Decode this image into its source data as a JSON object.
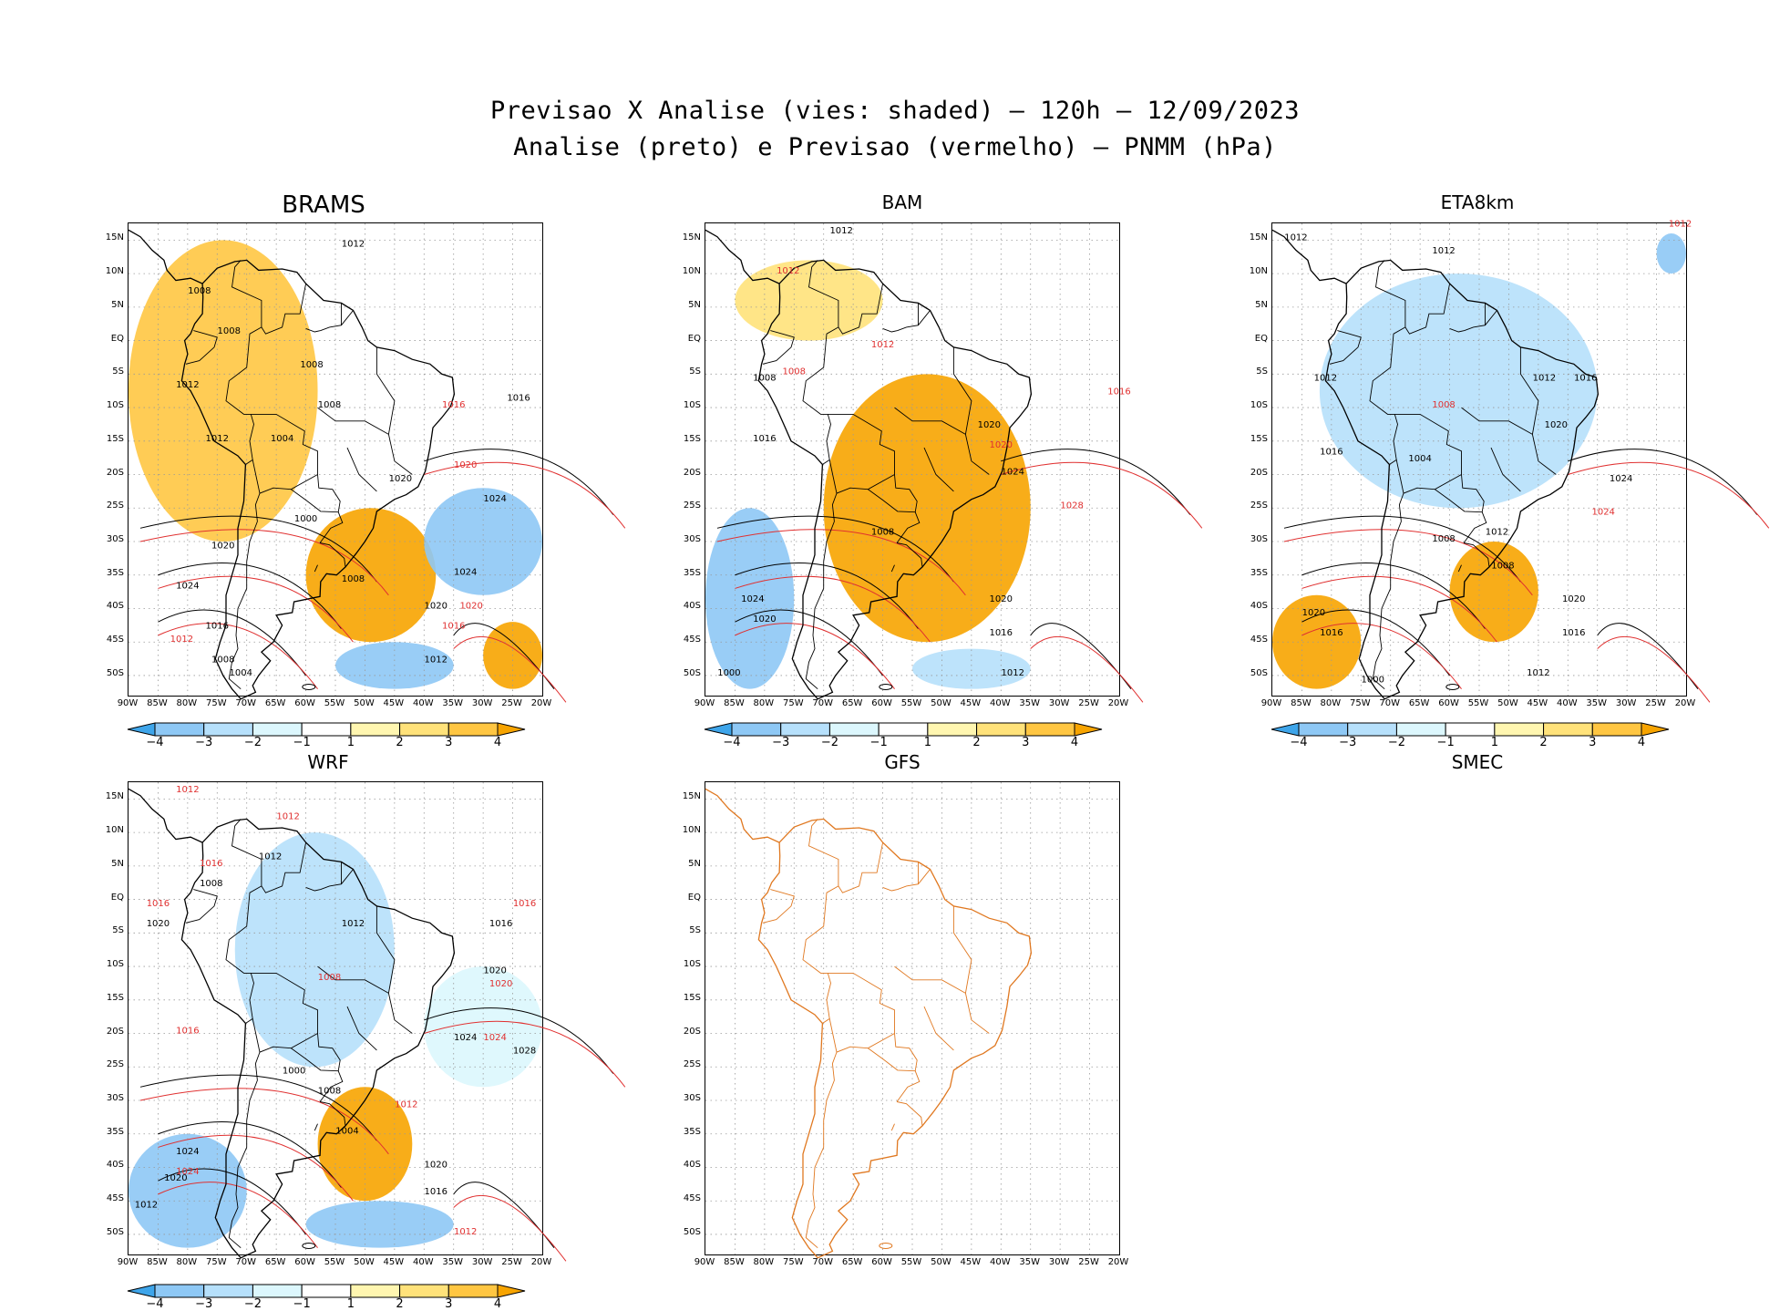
{
  "title_line1": "Previsao X Analise (vies: shaded) – 120h – 12/09/2023",
  "title_line2": "Analise (preto) e Previsao (vermelho) – PNMM (hPa)",
  "colors": {
    "neg4": "#3ea5ea",
    "neg3": "#8ec8f5",
    "neg2": "#b6e0fb",
    "neg1": "#dcf7fd",
    "pos1": "#fff6b0",
    "pos2": "#ffe27a",
    "pos3": "#ffc642",
    "pos4": "#f7a400",
    "analysis_line": "#000000",
    "forecast_line": "#e03030",
    "coast_gfs": "#e07820"
  },
  "chart_data": [
    {
      "type": "heatmap",
      "panel": "BRAMS",
      "title": "BRAMS",
      "xlabel": "",
      "ylabel": "",
      "x_ticks": [
        "90W",
        "85W",
        "80W",
        "75W",
        "70W",
        "65W",
        "60W",
        "55W",
        "50W",
        "45W",
        "40W",
        "35W",
        "30W",
        "25W",
        "20W"
      ],
      "y_ticks": [
        "15N",
        "10N",
        "5N",
        "EQ",
        "5S",
        "10S",
        "15S",
        "20S",
        "25S",
        "30S",
        "35S",
        "40S",
        "45S",
        "50S"
      ],
      "colorbar": [
        -4,
        -3,
        -2,
        -1,
        1,
        2,
        3,
        4
      ],
      "bias_regions": [
        {
          "lon": [
            -90,
            -58
          ],
          "lat": [
            -30,
            15
          ],
          "bias": 3
        },
        {
          "lon": [
            -60,
            -38
          ],
          "lat": [
            -45,
            -25
          ],
          "bias": 4
        },
        {
          "lon": [
            -40,
            -20
          ],
          "lat": [
            -38,
            -22
          ],
          "bias": -3
        },
        {
          "lon": [
            -55,
            -35
          ],
          "lat": [
            -52,
            -45
          ],
          "bias": -3
        },
        {
          "lon": [
            -30,
            -20
          ],
          "lat": [
            -52,
            -42
          ],
          "bias": 4
        }
      ],
      "contour_labels": [
        {
          "text": "1012",
          "lon": -52,
          "lat": 14,
          "color": "black"
        },
        {
          "text": "1008",
          "lon": -78,
          "lat": 7,
          "color": "black"
        },
        {
          "text": "1008",
          "lon": -73,
          "lat": 1,
          "color": "black"
        },
        {
          "text": "1008",
          "lon": -59,
          "lat": -4,
          "color": "black"
        },
        {
          "text": "1012",
          "lon": -80,
          "lat": -7,
          "color": "black"
        },
        {
          "text": "1008",
          "lon": -56,
          "lat": -10,
          "color": "black"
        },
        {
          "text": "1004",
          "lon": -64,
          "lat": -15,
          "color": "black"
        },
        {
          "text": "1012",
          "lon": -75,
          "lat": -15,
          "color": "black"
        },
        {
          "text": "1016",
          "lon": -24,
          "lat": -9,
          "color": "black"
        },
        {
          "text": "1016",
          "lon": -35,
          "lat": -10,
          "color": "red"
        },
        {
          "text": "1020",
          "lon": -44,
          "lat": -21,
          "color": "black"
        },
        {
          "text": "1020",
          "lon": -33,
          "lat": -19,
          "color": "red"
        },
        {
          "text": "1024",
          "lon": -28,
          "lat": -24,
          "color": "black"
        },
        {
          "text": "1000",
          "lon": -60,
          "lat": -27,
          "color": "black"
        },
        {
          "text": "1008",
          "lon": -52,
          "lat": -36,
          "color": "black"
        },
        {
          "text": "1020",
          "lon": -74,
          "lat": -31,
          "color": "black"
        },
        {
          "text": "1024",
          "lon": -80,
          "lat": -37,
          "color": "black"
        },
        {
          "text": "1024",
          "lon": -33,
          "lat": -35,
          "color": "black"
        },
        {
          "text": "1020",
          "lon": -38,
          "lat": -40,
          "color": "black"
        },
        {
          "text": "1020",
          "lon": -32,
          "lat": -40,
          "color": "red"
        },
        {
          "text": "1016",
          "lon": -75,
          "lat": -43,
          "color": "black"
        },
        {
          "text": "1012",
          "lon": -81,
          "lat": -45,
          "color": "red"
        },
        {
          "text": "1016",
          "lon": -35,
          "lat": -43,
          "color": "red"
        },
        {
          "text": "1008",
          "lon": -74,
          "lat": -48,
          "color": "black"
        },
        {
          "text": "1004",
          "lon": -71,
          "lat": -50,
          "color": "black"
        },
        {
          "text": "1012",
          "lon": -38,
          "lat": -48,
          "color": "black"
        }
      ]
    },
    {
      "type": "heatmap",
      "panel": "BAM",
      "title": "BAM",
      "x_ticks": [
        "90W",
        "85W",
        "80W",
        "75W",
        "70W",
        "65W",
        "60W",
        "55W",
        "50W",
        "45W",
        "40W",
        "35W",
        "30W",
        "25W",
        "20W"
      ],
      "y_ticks": [
        "15N",
        "10N",
        "5N",
        "EQ",
        "5S",
        "10S",
        "15S",
        "20S",
        "25S",
        "30S",
        "35S",
        "40S",
        "45S",
        "50S"
      ],
      "colorbar": [
        -4,
        -3,
        -2,
        -1,
        1,
        2,
        3,
        4
      ],
      "bias_regions": [
        {
          "lon": [
            -70,
            -35
          ],
          "lat": [
            -45,
            -5
          ],
          "bias": 4
        },
        {
          "lon": [
            -90,
            -75
          ],
          "lat": [
            -52,
            -25
          ],
          "bias": -3
        },
        {
          "lon": [
            -85,
            -60
          ],
          "lat": [
            0,
            12
          ],
          "bias": 2
        },
        {
          "lon": [
            -55,
            -35
          ],
          "lat": [
            -52,
            -46
          ],
          "bias": -2
        }
      ],
      "contour_labels": [
        {
          "text": "1012",
          "lon": -67,
          "lat": 16,
          "color": "black"
        },
        {
          "text": "1012",
          "lon": -76,
          "lat": 10,
          "color": "red"
        },
        {
          "text": "1008",
          "lon": -80,
          "lat": -6,
          "color": "black"
        },
        {
          "text": "1008",
          "lon": -75,
          "lat": -5,
          "color": "red"
        },
        {
          "text": "1012",
          "lon": -60,
          "lat": -1,
          "color": "red"
        },
        {
          "text": "1016",
          "lon": -20,
          "lat": -8,
          "color": "red"
        },
        {
          "text": "1016",
          "lon": -80,
          "lat": -15,
          "color": "black"
        },
        {
          "text": "1020",
          "lon": -42,
          "lat": -13,
          "color": "black"
        },
        {
          "text": "1020",
          "lon": -40,
          "lat": -16,
          "color": "red"
        },
        {
          "text": "1024",
          "lon": -38,
          "lat": -20,
          "color": "black"
        },
        {
          "text": "1028",
          "lon": -28,
          "lat": -25,
          "color": "red"
        },
        {
          "text": "1008",
          "lon": -60,
          "lat": -29,
          "color": "black"
        },
        {
          "text": "1024",
          "lon": -82,
          "lat": -39,
          "color": "black"
        },
        {
          "text": "1020",
          "lon": -80,
          "lat": -42,
          "color": "black"
        },
        {
          "text": "1020",
          "lon": -40,
          "lat": -39,
          "color": "black"
        },
        {
          "text": "1016",
          "lon": -40,
          "lat": -44,
          "color": "black"
        },
        {
          "text": "1012",
          "lon": -38,
          "lat": -50,
          "color": "black"
        },
        {
          "text": "1000",
          "lon": -86,
          "lat": -50,
          "color": "black"
        }
      ]
    },
    {
      "type": "heatmap",
      "panel": "ETA8km",
      "title": "ETA8km",
      "x_ticks": [
        "90W",
        "85W",
        "80W",
        "75W",
        "70W",
        "65W",
        "60W",
        "55W",
        "50W",
        "45W",
        "40W",
        "35W",
        "30W",
        "25W",
        "20W"
      ],
      "y_ticks": [
        "15N",
        "10N",
        "5N",
        "EQ",
        "5S",
        "10S",
        "15S",
        "20S",
        "25S",
        "30S",
        "35S",
        "40S",
        "45S",
        "50S"
      ],
      "colorbar": [
        -4,
        -3,
        -2,
        -1,
        1,
        2,
        3,
        4
      ],
      "bias_regions": [
        {
          "lon": [
            -82,
            -35
          ],
          "lat": [
            -25,
            10
          ],
          "bias": -2
        },
        {
          "lon": [
            -60,
            -45
          ],
          "lat": [
            -45,
            -30
          ],
          "bias": 4
        },
        {
          "lon": [
            -90,
            -75
          ],
          "lat": [
            -52,
            -38
          ],
          "bias": 4
        },
        {
          "lon": [
            -25,
            -20
          ],
          "lat": [
            10,
            16
          ],
          "bias": -3
        }
      ],
      "contour_labels": [
        {
          "text": "1012",
          "lon": -86,
          "lat": 15,
          "color": "black"
        },
        {
          "text": "1012",
          "lon": -61,
          "lat": 13,
          "color": "black"
        },
        {
          "text": "1012",
          "lon": -21,
          "lat": 17,
          "color": "red"
        },
        {
          "text": "1012",
          "lon": -81,
          "lat": -6,
          "color": "black"
        },
        {
          "text": "1012",
          "lon": -44,
          "lat": -6,
          "color": "black"
        },
        {
          "text": "1016",
          "lon": -37,
          "lat": -6,
          "color": "black"
        },
        {
          "text": "1008",
          "lon": -61,
          "lat": -10,
          "color": "red"
        },
        {
          "text": "1016",
          "lon": -80,
          "lat": -17,
          "color": "black"
        },
        {
          "text": "1020",
          "lon": -42,
          "lat": -13,
          "color": "black"
        },
        {
          "text": "1024",
          "lon": -31,
          "lat": -21,
          "color": "black"
        },
        {
          "text": "1024",
          "lon": -34,
          "lat": -26,
          "color": "red"
        },
        {
          "text": "1004",
          "lon": -65,
          "lat": -18,
          "color": "black"
        },
        {
          "text": "1008",
          "lon": -61,
          "lat": -30,
          "color": "black"
        },
        {
          "text": "1012",
          "lon": -52,
          "lat": -29,
          "color": "black"
        },
        {
          "text": "1008",
          "lon": -51,
          "lat": -34,
          "color": "black"
        },
        {
          "text": "1020",
          "lon": -39,
          "lat": -39,
          "color": "black"
        },
        {
          "text": "1020",
          "lon": -83,
          "lat": -41,
          "color": "black"
        },
        {
          "text": "1016",
          "lon": -80,
          "lat": -44,
          "color": "black"
        },
        {
          "text": "1016",
          "lon": -39,
          "lat": -44,
          "color": "black"
        },
        {
          "text": "1012",
          "lon": -45,
          "lat": -50,
          "color": "black"
        },
        {
          "text": "1000",
          "lon": -73,
          "lat": -51,
          "color": "black"
        }
      ]
    },
    {
      "type": "heatmap",
      "panel": "WRF",
      "title": "WRF",
      "x_ticks": [
        "90W",
        "85W",
        "80W",
        "75W",
        "70W",
        "65W",
        "60W",
        "55W",
        "50W",
        "45W",
        "40W",
        "35W",
        "30W",
        "25W",
        "20W"
      ],
      "y_ticks": [
        "15N",
        "10N",
        "5N",
        "EQ",
        "5S",
        "10S",
        "15S",
        "20S",
        "25S",
        "30S",
        "35S",
        "40S",
        "45S",
        "50S"
      ],
      "colorbar": [
        -4,
        -3,
        -2,
        -1,
        1,
        2,
        3,
        4
      ],
      "bias_regions": [
        {
          "lon": [
            -72,
            -45
          ],
          "lat": [
            -25,
            10
          ],
          "bias": -2
        },
        {
          "lon": [
            -90,
            -70
          ],
          "lat": [
            -52,
            -35
          ],
          "bias": -3
        },
        {
          "lon": [
            -58,
            -42
          ],
          "lat": [
            -45,
            -28
          ],
          "bias": 4
        },
        {
          "lon": [
            -60,
            -35
          ],
          "lat": [
            -52,
            -45
          ],
          "bias": -3
        },
        {
          "lon": [
            -40,
            -20
          ],
          "lat": [
            -28,
            -10
          ],
          "bias": -1
        }
      ],
      "contour_labels": [
        {
          "text": "1012",
          "lon": -80,
          "lat": 16,
          "color": "red"
        },
        {
          "text": "1012",
          "lon": -63,
          "lat": 12,
          "color": "red"
        },
        {
          "text": "1012",
          "lon": -66,
          "lat": 6,
          "color": "black"
        },
        {
          "text": "1016",
          "lon": -76,
          "lat": 5,
          "color": "red"
        },
        {
          "text": "1008",
          "lon": -76,
          "lat": 2,
          "color": "black"
        },
        {
          "text": "1016",
          "lon": -85,
          "lat": -1,
          "color": "red"
        },
        {
          "text": "1020",
          "lon": -85,
          "lat": -4,
          "color": "black"
        },
        {
          "text": "1012",
          "lon": -52,
          "lat": -4,
          "color": "black"
        },
        {
          "text": "1016",
          "lon": -27,
          "lat": -4,
          "color": "black"
        },
        {
          "text": "1016",
          "lon": -23,
          "lat": -1,
          "color": "red"
        },
        {
          "text": "1008",
          "lon": -56,
          "lat": -12,
          "color": "red"
        },
        {
          "text": "1020",
          "lon": -28,
          "lat": -11,
          "color": "black"
        },
        {
          "text": "1020",
          "lon": -27,
          "lat": -13,
          "color": "red"
        },
        {
          "text": "1024",
          "lon": -33,
          "lat": -21,
          "color": "black"
        },
        {
          "text": "1024",
          "lon": -28,
          "lat": -21,
          "color": "red"
        },
        {
          "text": "1028",
          "lon": -23,
          "lat": -23,
          "color": "black"
        },
        {
          "text": "1016",
          "lon": -80,
          "lat": -20,
          "color": "red"
        },
        {
          "text": "1000",
          "lon": -62,
          "lat": -26,
          "color": "black"
        },
        {
          "text": "1008",
          "lon": -56,
          "lat": -29,
          "color": "black"
        },
        {
          "text": "1012",
          "lon": -43,
          "lat": -31,
          "color": "red"
        },
        {
          "text": "1004",
          "lon": -53,
          "lat": -35,
          "color": "black"
        },
        {
          "text": "1024",
          "lon": -80,
          "lat": -38,
          "color": "black"
        },
        {
          "text": "1020",
          "lon": -82,
          "lat": -42,
          "color": "black"
        },
        {
          "text": "1024",
          "lon": -80,
          "lat": -41,
          "color": "red"
        },
        {
          "text": "1020",
          "lon": -38,
          "lat": -40,
          "color": "black"
        },
        {
          "text": "1016",
          "lon": -38,
          "lat": -44,
          "color": "black"
        },
        {
          "text": "1012",
          "lon": -87,
          "lat": -46,
          "color": "black"
        },
        {
          "text": "1012",
          "lon": -33,
          "lat": -50,
          "color": "red"
        }
      ]
    },
    {
      "type": "heatmap",
      "panel": "GFS",
      "title": "GFS",
      "x_ticks": [
        "90W",
        "85W",
        "80W",
        "75W",
        "70W",
        "65W",
        "60W",
        "55W",
        "50W",
        "45W",
        "40W",
        "35W",
        "30W",
        "25W",
        "20W"
      ],
      "y_ticks": [
        "15N",
        "10N",
        "5N",
        "EQ",
        "5S",
        "10S",
        "15S",
        "20S",
        "25S",
        "30S",
        "35S",
        "40S",
        "45S",
        "50S"
      ],
      "bias_regions": [],
      "contour_labels": [],
      "note_empty": true
    },
    {
      "type": "heatmap",
      "panel": "SMEC",
      "title": "SMEC",
      "bias_regions": [],
      "contour_labels": []
    }
  ]
}
